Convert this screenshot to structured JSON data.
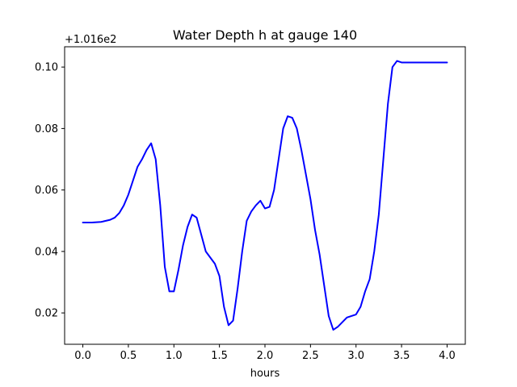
{
  "chart_data": {
    "type": "line",
    "title": "Water Depth h at gauge 140",
    "xlabel": "hours",
    "ylabel": "",
    "offset_label": "+1.016e2",
    "xlim": [
      -0.2,
      4.2
    ],
    "ylim": [
      0.0098,
      0.1066
    ],
    "xticks": [
      0.0,
      0.5,
      1.0,
      1.5,
      2.0,
      2.5,
      3.0,
      3.5,
      4.0
    ],
    "xtick_labels": [
      "0.0",
      "0.5",
      "1.0",
      "1.5",
      "2.0",
      "2.5",
      "3.0",
      "3.5",
      "4.0"
    ],
    "yticks": [
      0.02,
      0.04,
      0.06,
      0.08,
      0.1
    ],
    "ytick_labels": [
      "0.02",
      "0.04",
      "0.06",
      "0.08",
      "0.10"
    ],
    "grid": false,
    "series": [
      {
        "color": "#0000ff",
        "x": [
          0.0,
          0.1,
          0.2,
          0.3,
          0.35,
          0.4,
          0.45,
          0.5,
          0.55,
          0.6,
          0.65,
          0.7,
          0.75,
          0.8,
          0.85,
          0.9,
          0.95,
          1.0,
          1.05,
          1.1,
          1.15,
          1.2,
          1.25,
          1.3,
          1.35,
          1.4,
          1.45,
          1.5,
          1.55,
          1.6,
          1.65,
          1.7,
          1.75,
          1.8,
          1.85,
          1.9,
          1.95,
          2.0,
          2.05,
          2.1,
          2.15,
          2.2,
          2.25,
          2.3,
          2.35,
          2.4,
          2.45,
          2.5,
          2.55,
          2.6,
          2.65,
          2.7,
          2.75,
          2.8,
          2.85,
          2.9,
          2.95,
          3.0,
          3.05,
          3.1,
          3.15,
          3.2,
          3.25,
          3.3,
          3.35,
          3.4,
          3.45,
          3.5,
          3.55,
          3.6,
          3.65,
          3.7,
          3.75,
          3.8,
          3.85,
          3.9,
          3.95,
          4.0
        ],
        "y": [
          0.0494,
          0.0494,
          0.0496,
          0.0503,
          0.051,
          0.0525,
          0.055,
          0.0585,
          0.063,
          0.0675,
          0.07,
          0.073,
          0.0752,
          0.07,
          0.055,
          0.035,
          0.027,
          0.027,
          0.034,
          0.042,
          0.048,
          0.052,
          0.051,
          0.0455,
          0.04,
          0.038,
          0.036,
          0.032,
          0.022,
          0.016,
          0.0175,
          0.028,
          0.04,
          0.05,
          0.053,
          0.055,
          0.0565,
          0.054,
          0.0545,
          0.06,
          0.07,
          0.08,
          0.084,
          0.0835,
          0.08,
          0.073,
          0.065,
          0.057,
          0.047,
          0.039,
          0.029,
          0.019,
          0.0145,
          0.0155,
          0.017,
          0.0185,
          0.019,
          0.0195,
          0.022,
          0.027,
          0.031,
          0.04,
          0.052,
          0.07,
          0.088,
          0.1,
          0.102,
          0.1015,
          0.1015,
          0.1015,
          0.1015,
          0.1015,
          0.1015,
          0.1015,
          0.1015,
          0.1015,
          0.1015,
          0.1015
        ]
      }
    ]
  }
}
